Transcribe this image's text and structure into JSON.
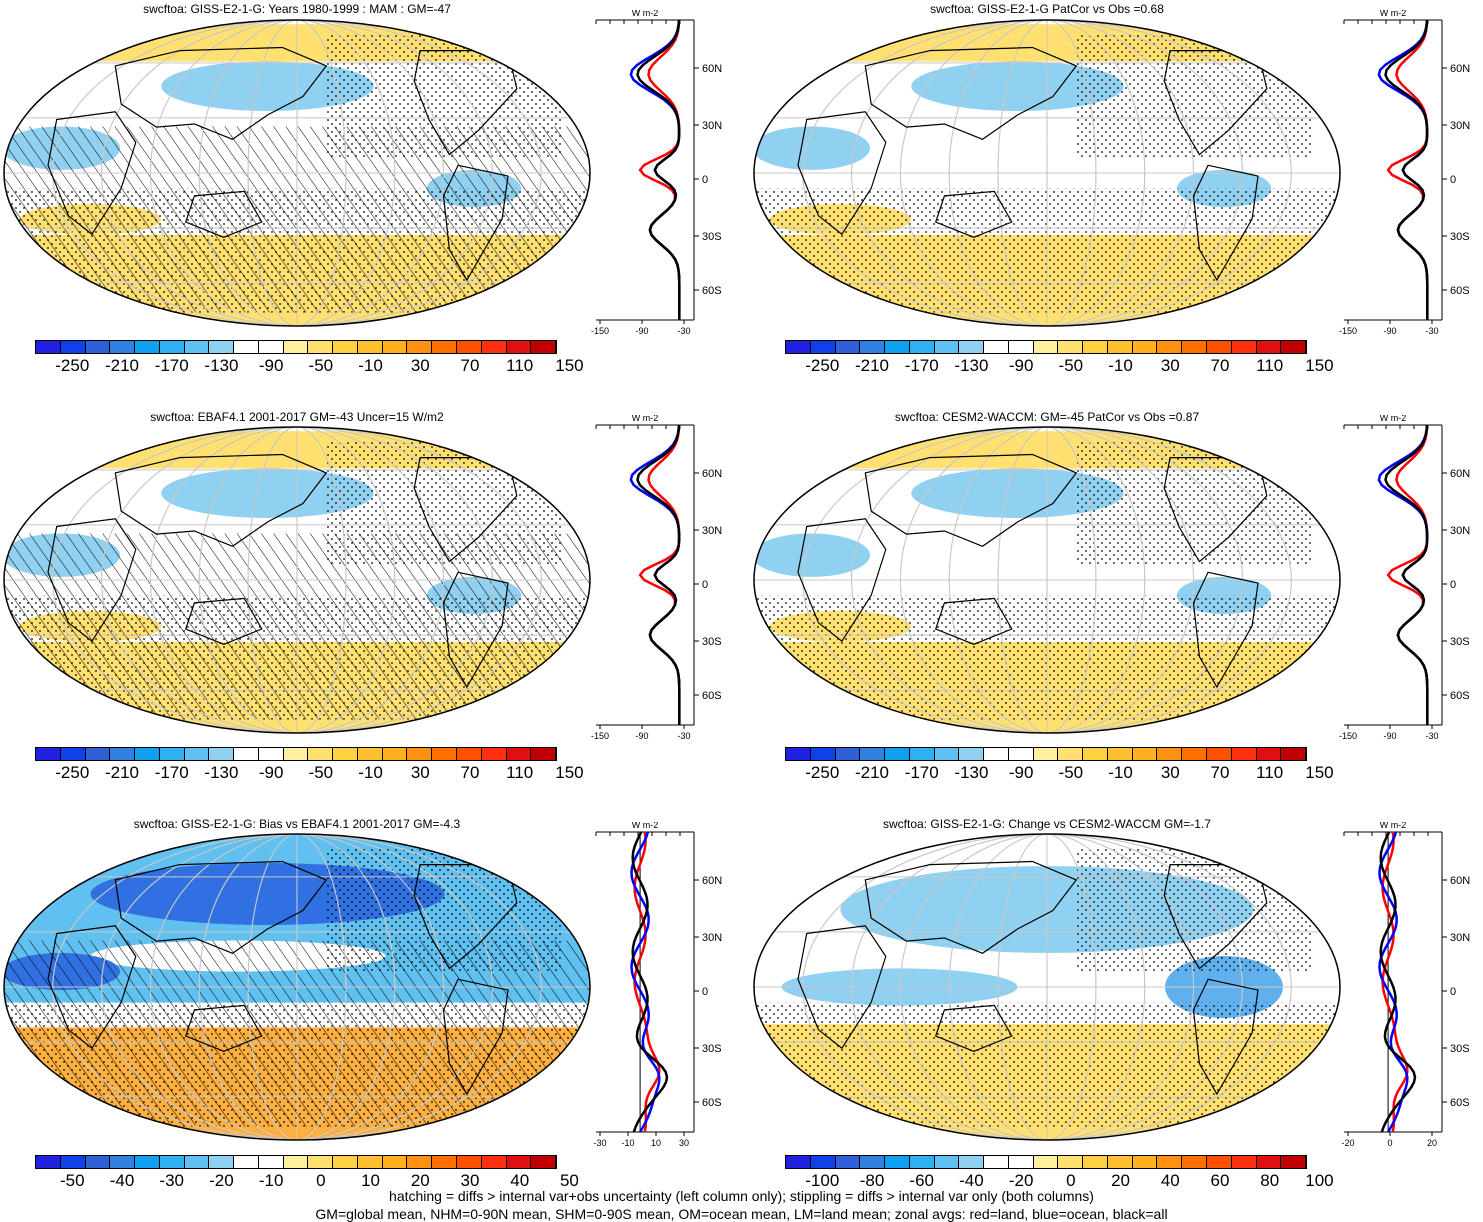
{
  "panels": [
    {
      "title": "swcftoa: GISS-E2-1-G: Years 1980-1999 : MAM : GM=-47",
      "colorbar": {
        "labels": [
          "-250",
          "-210",
          "-170",
          "-130",
          "-90",
          "-50",
          "-10",
          "30",
          "70",
          "110",
          "150"
        ],
        "palette": "abs"
      },
      "zonal": {
        "units": "W m-2",
        "xticks": [
          "-150",
          "-90",
          "-30"
        ],
        "yticks": [
          "60N",
          "30N",
          "0",
          "30S",
          "60S"
        ],
        "palette_hatch": true
      }
    },
    {
      "title": "swcftoa: GISS-E2-1-G PatCor vs Obs =0.68",
      "colorbar": {
        "labels": [
          "-250",
          "-210",
          "-170",
          "-130",
          "-90",
          "-50",
          "-10",
          "30",
          "70",
          "110",
          "150"
        ],
        "palette": "abs"
      },
      "zonal": {
        "units": "W m-2",
        "xticks": [
          "-150",
          "-90",
          "-30"
        ],
        "yticks": [
          "60N",
          "30N",
          "0",
          "30S",
          "60S"
        ]
      }
    },
    {
      "title": "swcftoa: EBAF4.1 2001-2017 GM=-43 Uncer=15 W/m2",
      "colorbar": {
        "labels": [
          "-250",
          "-210",
          "-170",
          "-130",
          "-90",
          "-50",
          "-10",
          "30",
          "70",
          "110",
          "150"
        ],
        "palette": "abs"
      },
      "zonal": {
        "units": "W m-2",
        "xticks": [
          "-150",
          "-90",
          "-30"
        ],
        "yticks": [
          "60N",
          "30N",
          "0",
          "30S",
          "60S"
        ]
      }
    },
    {
      "title": "swcftoa: CESM2-WACCM: GM=-45 PatCor vs Obs =0.87",
      "colorbar": {
        "labels": [
          "-250",
          "-210",
          "-170",
          "-130",
          "-90",
          "-50",
          "-10",
          "30",
          "70",
          "110",
          "150"
        ],
        "palette": "abs"
      },
      "zonal": {
        "units": "W m-2",
        "xticks": [
          "-150",
          "-90",
          "-30"
        ],
        "yticks": [
          "60N",
          "30N",
          "0",
          "30S",
          "60S"
        ]
      }
    },
    {
      "title": "swcftoa: GISS-E2-1-G: Bias vs EBAF4.1 2001-2017 GM=-4.3",
      "colorbar": {
        "labels": [
          "-50",
          "-40",
          "-30",
          "-20",
          "-10",
          "0",
          "10",
          "20",
          "30",
          "40",
          "50"
        ],
        "palette": "diff"
      },
      "zonal": {
        "units": "W m-2",
        "xticks": [
          "-30",
          "-10",
          "10",
          "30"
        ],
        "yticks": [
          "60N",
          "30N",
          "0",
          "30S",
          "60S"
        ]
      }
    },
    {
      "title": "swcftoa: GISS-E2-1-G: Change vs CESM2-WACCM GM=-1.7",
      "colorbar": {
        "labels": [
          "-100",
          "-80",
          "-60",
          "-40",
          "-20",
          "0",
          "20",
          "40",
          "60",
          "80",
          "100"
        ],
        "palette": "diff"
      },
      "zonal": {
        "units": "W m-2",
        "xticks": [
          "-20",
          "0",
          "20"
        ],
        "yticks": [
          "60N",
          "30N",
          "0",
          "30S",
          "60S"
        ]
      }
    }
  ],
  "colors": {
    "abs": [
      "#2020e0",
      "#1040e8",
      "#3060d8",
      "#3080e0",
      "#10a0f0",
      "#30b0f0",
      "#60c0f0",
      "#90d0f0",
      "#ffffff",
      "#ffffff",
      "#fff0a0",
      "#ffe070",
      "#ffd040",
      "#ffc030",
      "#ffb020",
      "#ff9010",
      "#ff7000",
      "#ff5000",
      "#ff3010",
      "#e01010",
      "#c00000"
    ],
    "diff": [
      "#2020e0",
      "#1040e8",
      "#3060d8",
      "#3080e0",
      "#10a0f0",
      "#30b0f0",
      "#60c0f0",
      "#90d0f0",
      "#ffffff",
      "#ffffff",
      "#fff0a0",
      "#ffe070",
      "#ffd040",
      "#ffc030",
      "#ffb020",
      "#ff9010",
      "#ff7000",
      "#ff5000",
      "#ff3010",
      "#e01010",
      "#c00000"
    ],
    "land_line": "#ff0000",
    "ocean_line": "#0000ff",
    "all_line": "#000000"
  },
  "footer": {
    "line1": "hatching = diffs > internal var+obs uncertainty (left column only); stippling = diffs > internal var only (both columns)",
    "line2": "GM=global mean, NHM=0-90N mean, SHM=0-90S mean, OM=ocean mean, LM=land mean; zonal avgs: red=land, blue=ocean, black=all"
  }
}
